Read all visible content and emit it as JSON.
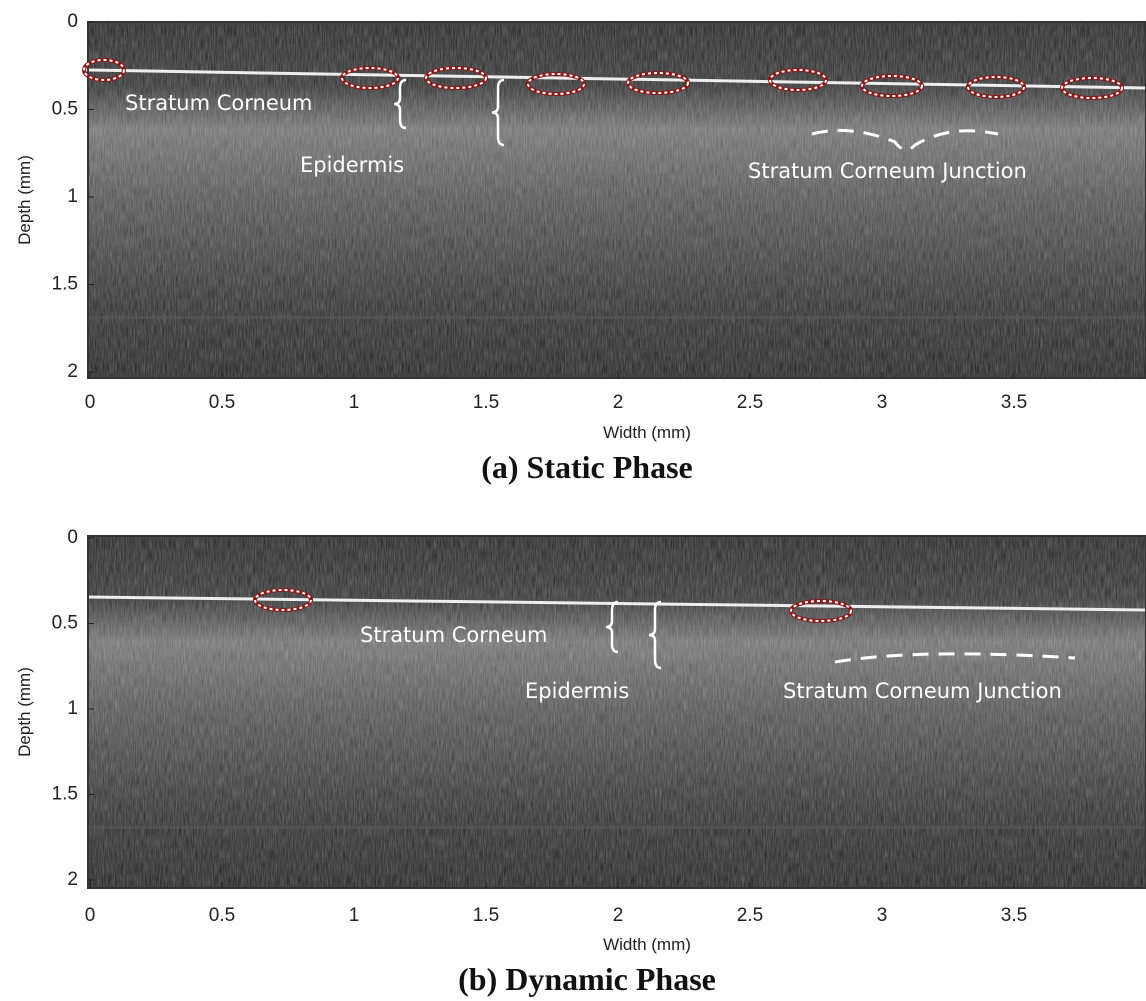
{
  "chart_data": [
    {
      "type": "image",
      "title": "(a) Static Phase",
      "xlabel": "Width (mm)",
      "ylabel": "Depth (mm)",
      "xlim": [
        0,
        4
      ],
      "ylim": [
        0,
        2
      ],
      "xticks": [
        0,
        0.5,
        1,
        1.5,
        2,
        2.5,
        3,
        3.5
      ],
      "yticks": [
        0,
        0.5,
        1,
        1.5,
        2
      ],
      "annotations": [
        "Stratum Corneum",
        "Epidermis",
        "Stratum Corneum Junction"
      ]
    },
    {
      "type": "image",
      "title": "(b) Dynamic Phase",
      "xlabel": "Width (mm)",
      "ylabel": "Depth (mm)",
      "xlim": [
        0,
        4
      ],
      "ylim": [
        0,
        2
      ],
      "xticks": [
        0,
        0.5,
        1,
        1.5,
        2,
        2.5,
        3,
        3.5
      ],
      "yticks": [
        0,
        0.5,
        1,
        1.5,
        2
      ],
      "annotations": [
        "Stratum Corneum",
        "Epidermis",
        "Stratum Corneum Junction"
      ]
    }
  ]
}
